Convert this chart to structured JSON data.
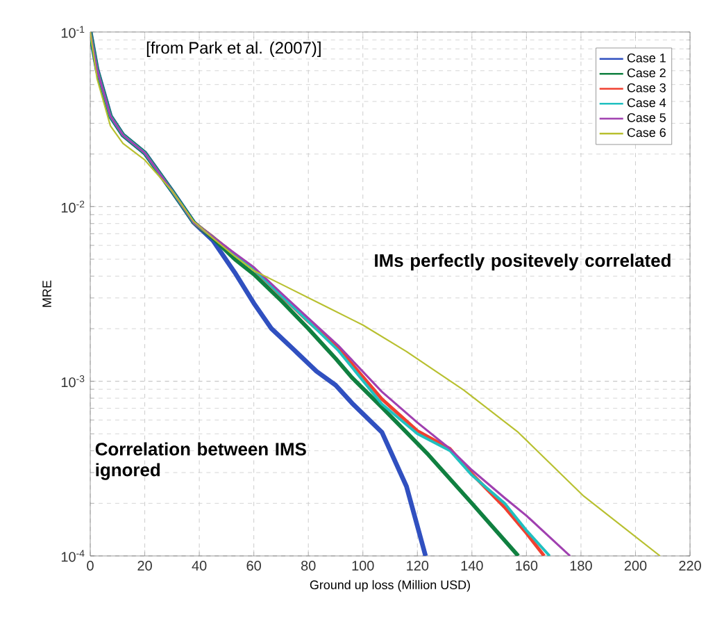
{
  "chart_data": {
    "type": "line",
    "xlabel": "Ground up loss (Million USD)",
    "ylabel": "MRE",
    "xlim": [
      0,
      220
    ],
    "xticks": [
      0,
      20,
      40,
      60,
      80,
      100,
      120,
      140,
      160,
      180,
      200,
      220
    ],
    "ylim": [
      0.0001,
      0.1
    ],
    "yticks": [
      {
        "value": 0.0001,
        "label": "10$^{-4}$"
      },
      {
        "value": 0.001,
        "label": "10$^{-3}$"
      },
      {
        "value": 0.01,
        "label": "10$^{-2}$"
      },
      {
        "value": 0.1,
        "label": "10$^{-1}$"
      }
    ],
    "log": "y",
    "grid": true,
    "legend": "top right",
    "marker": "none",
    "line_style": "solid",
    "annotations": [
      "[from Park et al. (2007)]",
      "IMs perfectly positevely correlated",
      "Correlation between IMS ignored"
    ],
    "series": [
      {
        "name": "Case 1",
        "color": "#3050c0",
        "x": [
          0,
          2.5,
          7.4,
          12,
          20,
          30,
          38,
          45,
          53,
          60,
          66.5,
          75,
          83,
          90,
          96,
          107,
          116,
          123
        ],
        "values": [
          0.1,
          0.061,
          0.033,
          0.0257,
          0.0203,
          0.0123,
          0.0081,
          0.0064,
          0.0042,
          0.0028,
          0.002,
          0.0015,
          0.00114,
          0.00095,
          0.00075,
          0.00051,
          0.00025,
          0.0001
        ]
      },
      {
        "name": "Case 2",
        "color": "#108040",
        "x": [
          0,
          2.5,
          7.4,
          12,
          20,
          30,
          38,
          45,
          53,
          60,
          70,
          80,
          90,
          96,
          107,
          124,
          140,
          157
        ],
        "values": [
          0.1,
          0.061,
          0.033,
          0.0257,
          0.0203,
          0.0123,
          0.0081,
          0.0066,
          0.005,
          0.0041,
          0.0029,
          0.002,
          0.00135,
          0.00105,
          0.00071,
          0.00038,
          0.0002,
          0.0001
        ]
      },
      {
        "name": "Case 3",
        "color": "#f04030",
        "x": [
          38,
          45,
          53,
          60,
          70,
          80,
          91,
          107,
          120,
          132,
          140,
          152,
          160,
          166.5
        ],
        "values": [
          0.0081,
          0.0067,
          0.0053,
          0.0044,
          0.0031,
          0.0022,
          0.00155,
          0.00079,
          0.00052,
          0.00041,
          0.000295,
          0.00019,
          0.000135,
          0.0001
        ]
      },
      {
        "name": "Case 4",
        "color": "#20c0c0",
        "x": [
          0,
          2.5,
          7.4,
          12,
          20,
          30,
          38,
          45,
          53,
          60,
          70,
          80,
          91,
          107,
          120,
          132,
          140,
          152,
          160,
          168.5
        ],
        "values": [
          0.1,
          0.061,
          0.033,
          0.0257,
          0.0203,
          0.0123,
          0.0081,
          0.0067,
          0.0053,
          0.0044,
          0.0031,
          0.0022,
          0.0015,
          0.00074,
          0.0005,
          0.0004,
          0.00029,
          0.0002,
          0.00014,
          0.0001
        ]
      },
      {
        "name": "Case 5",
        "color": "#a040b0",
        "x": [
          0,
          2.5,
          7.4,
          12,
          20,
          30,
          38,
          45,
          53,
          60,
          70,
          80,
          91,
          107,
          120,
          132,
          140,
          152,
          160,
          176
        ],
        "values": [
          0.1,
          0.061,
          0.033,
          0.0257,
          0.0203,
          0.0123,
          0.0081,
          0.0067,
          0.0054,
          0.0045,
          0.0032,
          0.0023,
          0.0016,
          0.00087,
          0.00058,
          0.00041,
          0.00031,
          0.000215,
          0.00017,
          0.0001
        ]
      },
      {
        "name": "Case 6",
        "color": "#b8c030",
        "x": [
          0,
          2.5,
          7.4,
          12,
          20,
          30,
          38,
          45,
          53,
          60,
          70,
          86,
          100,
          116,
          137,
          157,
          181,
          209
        ],
        "values": [
          0.1,
          0.054,
          0.029,
          0.023,
          0.0185,
          0.0123,
          0.0082,
          0.0066,
          0.0052,
          0.0043,
          0.0036,
          0.0027,
          0.0021,
          0.00148,
          0.00089,
          0.00051,
          0.00022,
          0.0001
        ]
      }
    ]
  }
}
